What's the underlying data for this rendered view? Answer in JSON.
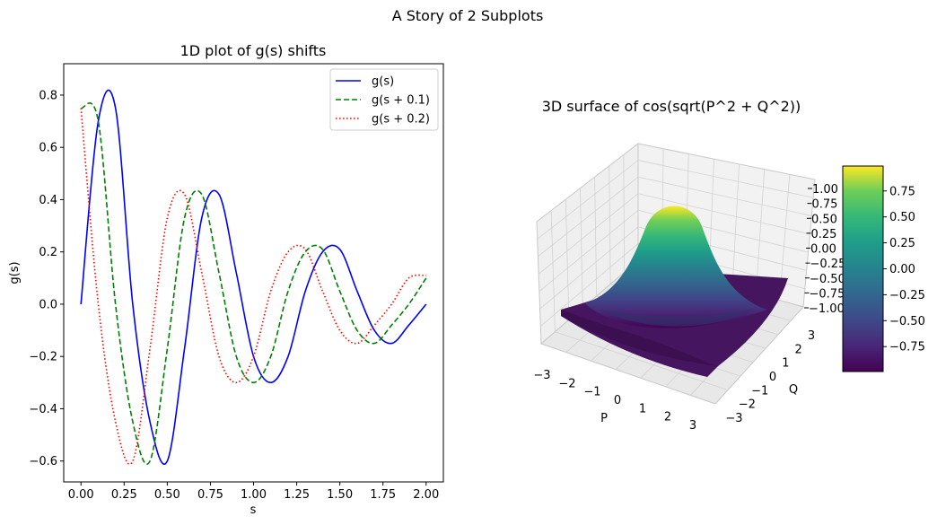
{
  "figure": {
    "suptitle": "A Story of 2 Subplots"
  },
  "chart_data": [
    {
      "type": "line",
      "title": "1D plot of g(s) shifts",
      "xlabel": "s",
      "ylabel": "g(s)",
      "xlim": [
        -0.1,
        2.1
      ],
      "ylim": [
        -0.68,
        0.92
      ],
      "xticks": [
        0.0,
        0.25,
        0.5,
        0.75,
        1.0,
        1.25,
        1.5,
        1.75,
        2.0
      ],
      "xtick_labels": [
        "0.00",
        "0.25",
        "0.50",
        "0.75",
        "1.00",
        "1.25",
        "1.50",
        "1.75",
        "2.00"
      ],
      "yticks": [
        -0.6,
        -0.4,
        -0.2,
        0.0,
        0.2,
        0.4,
        0.6,
        0.8
      ],
      "ytick_labels": [
        "−0.6",
        "−0.4",
        "−0.2",
        "0.0",
        "0.2",
        "0.4",
        "0.6",
        "0.8"
      ],
      "legend_position": "upper right",
      "x": [
        0.0,
        0.1,
        0.2,
        0.3,
        0.4,
        0.5,
        0.6,
        0.7,
        0.8,
        0.9,
        1.0,
        1.1,
        1.2,
        1.3,
        1.4,
        1.5,
        1.6,
        1.7,
        1.8,
        1.9,
        2.0
      ],
      "series": [
        {
          "name": "g(s)",
          "color": "#0000ff",
          "dash": "solid",
          "values": [
            0.0,
            0.7,
            0.75,
            0.0,
            -0.45,
            -0.6,
            -0.17,
            0.33,
            0.42,
            0.12,
            -0.2,
            -0.3,
            -0.2,
            0.05,
            0.2,
            0.21,
            0.05,
            -0.1,
            -0.15,
            -0.08,
            0.0
          ]
        },
        {
          "name": "g(s + 0.1)",
          "color": "#008000",
          "dash": "dashed",
          "values": [
            0.75,
            0.7,
            0.0,
            -0.45,
            -0.6,
            -0.17,
            0.33,
            0.42,
            0.12,
            -0.2,
            -0.3,
            -0.2,
            0.05,
            0.2,
            0.21,
            0.05,
            -0.1,
            -0.15,
            -0.08,
            0.0,
            0.1
          ]
        },
        {
          "name": "g(s + 0.2)",
          "color": "#ff0000",
          "dash": "dotted",
          "values": [
            0.75,
            0.0,
            -0.45,
            -0.6,
            -0.17,
            0.33,
            0.42,
            0.12,
            -0.2,
            -0.3,
            -0.2,
            0.05,
            0.2,
            0.21,
            0.05,
            -0.1,
            -0.15,
            -0.08,
            0.0,
            0.1,
            0.11
          ]
        }
      ]
    },
    {
      "type": "surface",
      "title": "3D surface of cos(sqrt(P^2 + Q^2))",
      "xlabel": "P",
      "ylabel": "Q",
      "xlim": [
        -3,
        3
      ],
      "ylim": [
        -3,
        3
      ],
      "zlim": [
        -1.0,
        1.0
      ],
      "xticks": [
        -3,
        -2,
        -1,
        0,
        1,
        2,
        3
      ],
      "xtick_labels": [
        "−3",
        "−2",
        "−1",
        "0",
        "1",
        "2",
        "3"
      ],
      "yticks": [
        -3,
        -2,
        -1,
        0,
        1,
        2,
        3
      ],
      "ytick_labels": [
        "−3",
        "−2",
        "−1",
        "0",
        "1",
        "2",
        "3"
      ],
      "zticks": [
        -1.0,
        -0.75,
        -0.5,
        -0.25,
        0.0,
        0.25,
        0.5,
        0.75,
        1.0
      ],
      "ztick_labels": [
        "−1.00",
        "−0.75",
        "−0.50",
        "−0.25",
        "0.00",
        "0.25",
        "0.50",
        "0.75",
        "1.00"
      ],
      "colormap": "viridis",
      "colorbar": {
        "range": [
          -0.99,
          0.99
        ],
        "ticks": [
          -0.75,
          -0.5,
          -0.25,
          0.0,
          0.25,
          0.5,
          0.75
        ],
        "tick_labels": [
          "−0.75",
          "−0.50",
          "−0.25",
          "0.00",
          "0.25",
          "0.50",
          "0.75"
        ]
      }
    }
  ]
}
